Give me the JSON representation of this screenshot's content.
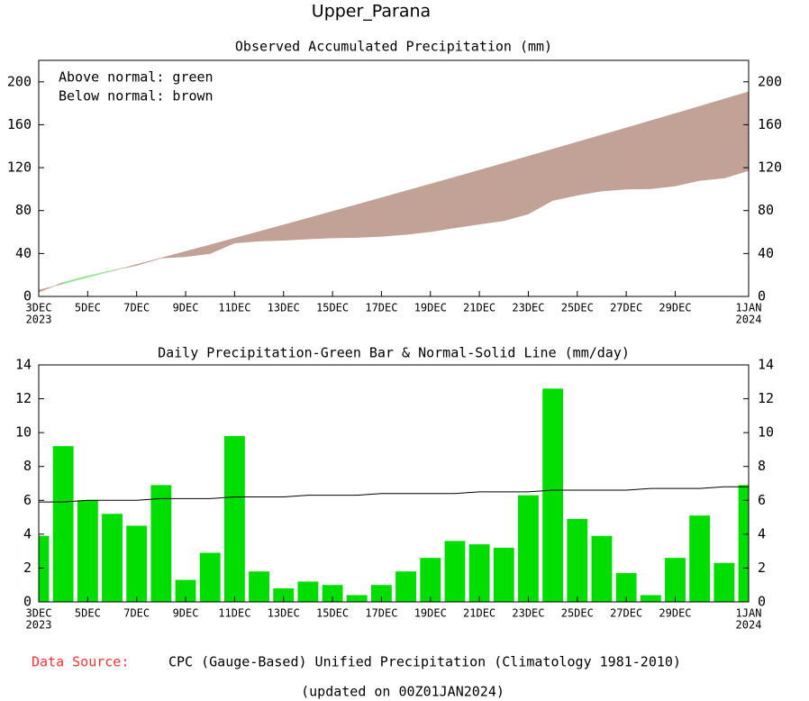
{
  "title": "Upper_Parana",
  "source_label": "Data Source:",
  "source": "CPC (Gauge-Based) Unified Precipitation (Climatology 1981-2010)",
  "updated": "(updated on 00Z01JAN2024)",
  "chart_data": [
    {
      "type": "area",
      "title": "Observed Accumulated Precipitation (mm)",
      "annotations": [
        "Above normal: green",
        "Below normal: brown"
      ],
      "above_color": "#8ee88e",
      "below_color": "#c2a196",
      "xlim": [
        0,
        29
      ],
      "xticks": [
        {
          "value": 0,
          "label": "3DEC"
        },
        {
          "value": 2,
          "label": "5DEC"
        },
        {
          "value": 4,
          "label": "7DEC"
        },
        {
          "value": 6,
          "label": "9DEC"
        },
        {
          "value": 8,
          "label": "11DEC"
        },
        {
          "value": 10,
          "label": "13DEC"
        },
        {
          "value": 12,
          "label": "15DEC"
        },
        {
          "value": 14,
          "label": "17DEC"
        },
        {
          "value": 16,
          "label": "19DEC"
        },
        {
          "value": 18,
          "label": "21DEC"
        },
        {
          "value": 20,
          "label": "23DEC"
        },
        {
          "value": 22,
          "label": "25DEC"
        },
        {
          "value": 24,
          "label": "27DEC"
        },
        {
          "value": 26,
          "label": "29DEC"
        },
        {
          "value": 29,
          "label": "1JAN"
        }
      ],
      "year_labels": [
        {
          "value": 0,
          "label": "2023"
        },
        {
          "value": 29,
          "label": "2024"
        }
      ],
      "ylim": [
        0,
        220
      ],
      "yticks": [
        0,
        40,
        80,
        120,
        160,
        200
      ],
      "series": [
        {
          "values": [
            3.9,
            13.1,
            19.1,
            24.3,
            28.8,
            35.7,
            37.0,
            39.9,
            49.7,
            51.5,
            52.3,
            53.5,
            54.5,
            54.9,
            55.9,
            57.7,
            60.3,
            63.9,
            67.3,
            70.5,
            76.8,
            89.4,
            94.3,
            98.2,
            99.9,
            100.3,
            102.9,
            108.0,
            110.3,
            117.2
          ]
        },
        {
          "values": [
            5.9,
            11.8,
            17.8,
            23.8,
            29.8,
            35.9,
            42.0,
            48.1,
            54.3,
            60.5,
            66.7,
            73.0,
            79.3,
            85.6,
            92.0,
            98.4,
            104.8,
            111.2,
            117.7,
            124.2,
            130.7,
            137.3,
            143.9,
            150.5,
            157.1,
            163.8,
            170.5,
            177.2,
            184.0,
            190.8
          ]
        }
      ]
    },
    {
      "type": "bar",
      "title": "Daily Precipitation-Green Bar & Normal-Solid Line (mm/day)",
      "xlim": [
        0,
        29
      ],
      "xticks": [
        {
          "value": 0,
          "label": "3DEC"
        },
        {
          "value": 2,
          "label": "5DEC"
        },
        {
          "value": 4,
          "label": "7DEC"
        },
        {
          "value": 6,
          "label": "9DEC"
        },
        {
          "value": 8,
          "label": "11DEC"
        },
        {
          "value": 10,
          "label": "13DEC"
        },
        {
          "value": 12,
          "label": "15DEC"
        },
        {
          "value": 14,
          "label": "17DEC"
        },
        {
          "value": 16,
          "label": "19DEC"
        },
        {
          "value": 18,
          "label": "21DEC"
        },
        {
          "value": 20,
          "label": "23DEC"
        },
        {
          "value": 22,
          "label": "25DEC"
        },
        {
          "value": 24,
          "label": "27DEC"
        },
        {
          "value": 26,
          "label": "29DEC"
        },
        {
          "value": 29,
          "label": "1JAN"
        }
      ],
      "year_labels": [
        {
          "value": 0,
          "label": "2023"
        },
        {
          "value": 29,
          "label": "2024"
        }
      ],
      "ylim": [
        0,
        14
      ],
      "yticks": [
        0,
        2,
        4,
        6,
        8,
        10,
        12,
        14
      ],
      "series": [
        {
          "type": "bar",
          "color": "#00dd00",
          "values": [
            3.9,
            9.2,
            6.0,
            5.2,
            4.5,
            6.9,
            1.3,
            2.9,
            9.8,
            1.8,
            0.8,
            1.2,
            1.0,
            0.4,
            1.0,
            1.8,
            2.6,
            3.6,
            3.4,
            3.2,
            6.3,
            12.6,
            4.9,
            3.9,
            1.7,
            0.4,
            2.6,
            5.1,
            2.3,
            6.9
          ]
        },
        {
          "type": "line",
          "color": "#000000",
          "values": [
            5.9,
            5.9,
            6.0,
            6.0,
            6.0,
            6.1,
            6.1,
            6.1,
            6.2,
            6.2,
            6.2,
            6.3,
            6.3,
            6.3,
            6.4,
            6.4,
            6.4,
            6.4,
            6.5,
            6.5,
            6.5,
            6.6,
            6.6,
            6.6,
            6.6,
            6.7,
            6.7,
            6.7,
            6.8,
            6.8
          ]
        }
      ]
    }
  ]
}
